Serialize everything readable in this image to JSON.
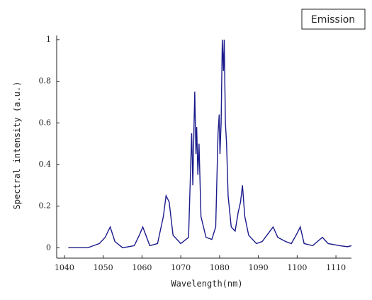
{
  "chart_data": {
    "type": "line",
    "x_label": "Wavelength(nm)",
    "y_label": "Spectral intensity (a.u.)",
    "xlim": [
      1038,
      1114
    ],
    "xticks": [
      1040,
      1050,
      1060,
      1070,
      1080,
      1090,
      1100,
      1110
    ],
    "ylim": [
      -0.05,
      1.02
    ],
    "yticks": [
      0,
      0.2,
      0.4,
      0.6,
      0.8,
      1
    ],
    "legend": "top-right",
    "x": [
      1041,
      1046,
      1049,
      1050.5,
      1051.8,
      1053,
      1055,
      1058,
      1059.3,
      1060.2,
      1061,
      1062,
      1064,
      1065.5,
      1066.2,
      1067,
      1068,
      1070,
      1072,
      1072.8,
      1073.1,
      1073.4,
      1073.6,
      1073.9,
      1074.1,
      1074.4,
      1074.7,
      1075.2,
      1076.5,
      1078,
      1079,
      1079.6,
      1079.9,
      1080.1,
      1080.4,
      1080.7,
      1081,
      1081.2,
      1081.5,
      1081.8,
      1082.2,
      1083,
      1084,
      1084.8,
      1085.4,
      1085.9,
      1086.5,
      1087.5,
      1089.5,
      1091,
      1093.8,
      1095,
      1097,
      1098.5,
      1100,
      1100.8,
      1101.8,
      1104,
      1106.5,
      1108,
      1111,
      1113,
      1114
    ],
    "series": [
      {
        "name": "Emission",
        "color": "#1a1a8c",
        "values": [
          0,
          0,
          0.02,
          0.05,
          0.1,
          0.03,
          0,
          0.01,
          0.06,
          0.1,
          0.06,
          0.01,
          0.02,
          0.15,
          0.25,
          0.22,
          0.06,
          0.02,
          0.05,
          0.55,
          0.3,
          0.58,
          0.75,
          0.45,
          0.58,
          0.35,
          0.5,
          0.15,
          0.05,
          0.04,
          0.1,
          0.55,
          0.64,
          0.45,
          0.6,
          1.0,
          0.85,
          1.0,
          0.6,
          0.5,
          0.25,
          0.1,
          0.08,
          0.17,
          0.22,
          0.3,
          0.15,
          0.06,
          0.02,
          0.03,
          0.1,
          0.05,
          0.03,
          0.02,
          0.07,
          0.1,
          0.02,
          0.01,
          0.05,
          0.02,
          0.01,
          0.005,
          0.01
        ]
      }
    ]
  }
}
